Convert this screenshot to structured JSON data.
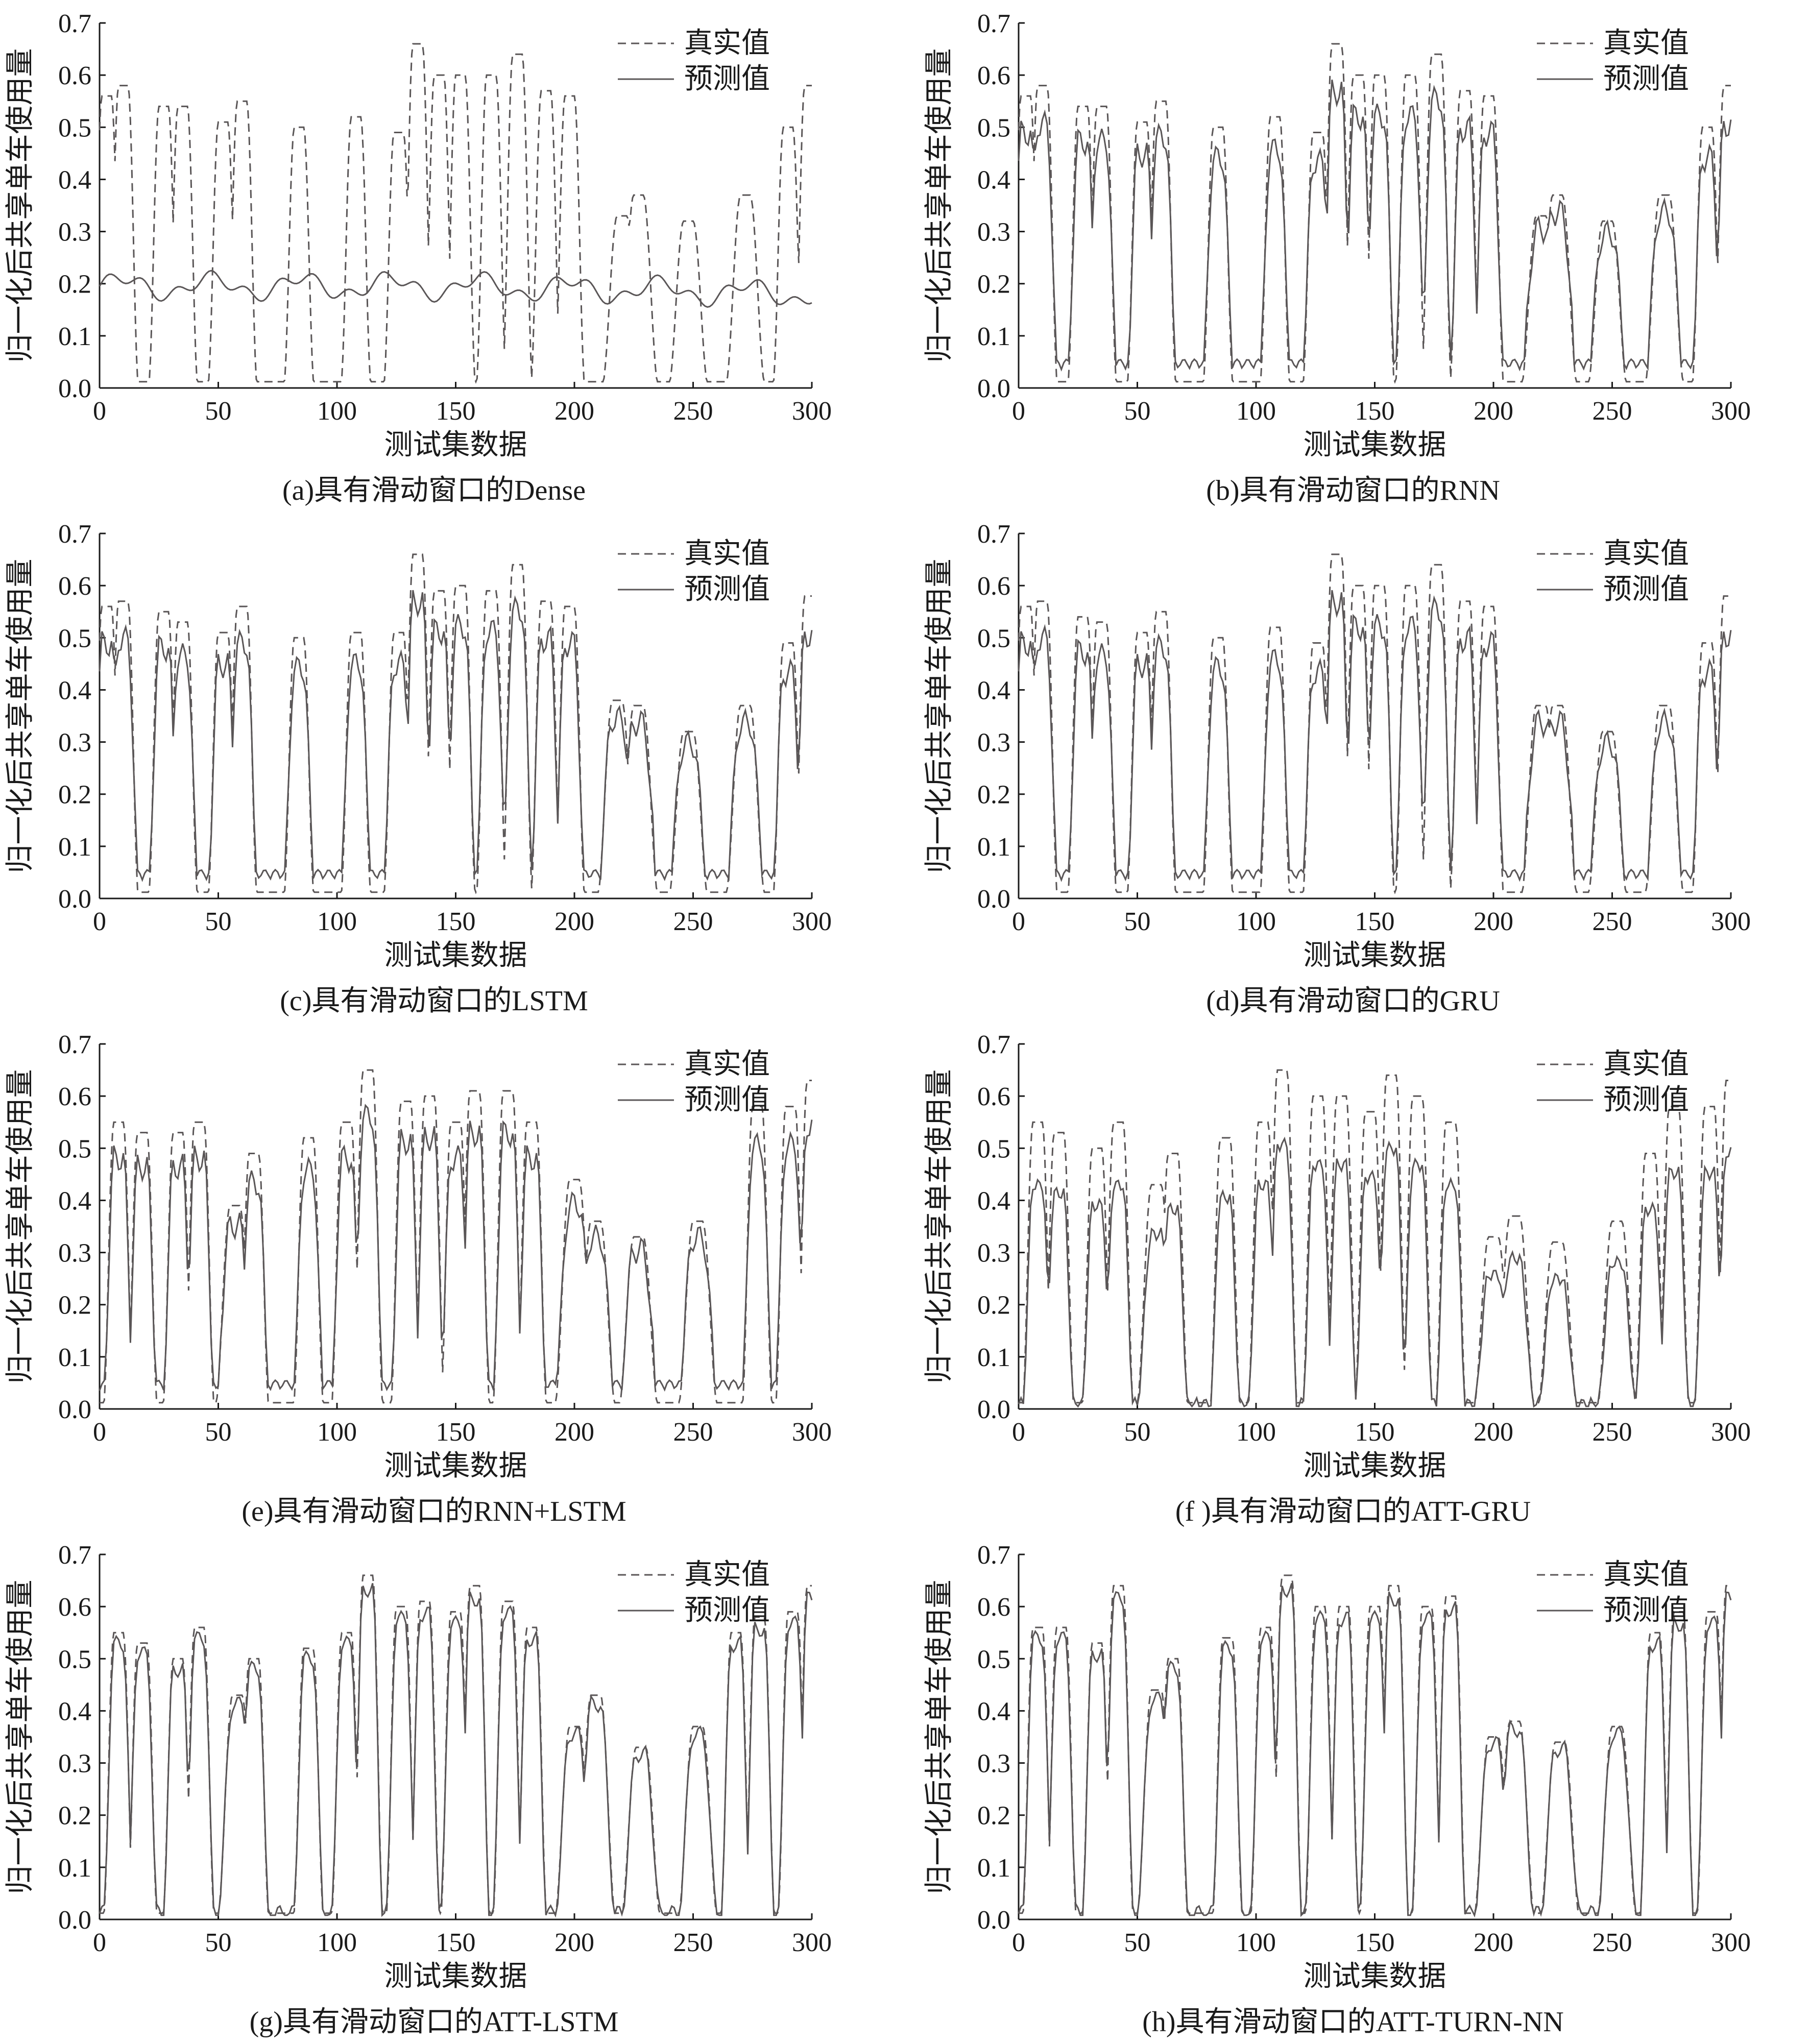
{
  "legend": {
    "actual": "真实值",
    "predicted": "预测值"
  },
  "colors": {
    "line": "#5a5657",
    "axis": "#1a1a1a",
    "background": "#ffffff"
  },
  "chart_data": [
    {
      "type": "line",
      "caption": "(a)具有滑动窗口的Dense",
      "xlabel": "测试集数据",
      "ylabel": "归一化后共享单车使用量",
      "xlim": [
        0,
        300
      ],
      "ylim": [
        0,
        0.7
      ],
      "xticks": [
        0,
        50,
        100,
        150,
        200,
        250,
        300
      ],
      "yticks": [
        0.0,
        0.1,
        0.2,
        0.3,
        0.4,
        0.5,
        0.6,
        0.7
      ],
      "legend_position": "top-right",
      "pattern": "a",
      "peaks": [
        [
          3,
          0.56
        ],
        [
          10,
          0.58
        ],
        [
          27,
          0.54
        ],
        [
          35,
          0.54
        ],
        [
          52,
          0.51
        ],
        [
          60,
          0.55
        ],
        [
          84,
          0.5
        ],
        [
          108,
          0.52
        ],
        [
          126,
          0.49
        ],
        [
          134,
          0.66
        ],
        [
          143,
          0.6
        ],
        [
          152,
          0.6
        ],
        [
          165,
          0.6
        ],
        [
          176,
          0.64
        ],
        [
          188,
          0.57
        ],
        [
          198,
          0.56
        ],
        [
          220,
          0.33
        ],
        [
          227,
          0.37
        ],
        [
          248,
          0.32
        ],
        [
          272,
          0.37
        ],
        [
          290,
          0.5
        ],
        [
          299,
          0.58
        ]
      ],
      "series": [
        {
          "name": "真实值",
          "style": "dashed"
        },
        {
          "name": "预测值",
          "style": "solid"
        }
      ]
    },
    {
      "type": "line",
      "caption": "(b)具有滑动窗口的RNN",
      "xlabel": "测试集数据",
      "ylabel": "归一化后共享单车使用量",
      "xlim": [
        0,
        300
      ],
      "ylim": [
        0,
        0.7
      ],
      "xticks": [
        0,
        50,
        100,
        150,
        200,
        250,
        300
      ],
      "yticks": [
        0.0,
        0.1,
        0.2,
        0.3,
        0.4,
        0.5,
        0.6,
        0.7
      ],
      "legend_position": "top-right",
      "pattern": "b",
      "peaks": [
        [
          3,
          0.56
        ],
        [
          10,
          0.58
        ],
        [
          27,
          0.54
        ],
        [
          35,
          0.54
        ],
        [
          52,
          0.51
        ],
        [
          60,
          0.55
        ],
        [
          84,
          0.5
        ],
        [
          108,
          0.52
        ],
        [
          126,
          0.49
        ],
        [
          134,
          0.66
        ],
        [
          143,
          0.6
        ],
        [
          152,
          0.6
        ],
        [
          165,
          0.6
        ],
        [
          176,
          0.64
        ],
        [
          188,
          0.57
        ],
        [
          198,
          0.56
        ],
        [
          220,
          0.33
        ],
        [
          227,
          0.37
        ],
        [
          248,
          0.32
        ],
        [
          272,
          0.37
        ],
        [
          290,
          0.5
        ],
        [
          299,
          0.58
        ]
      ],
      "series": [
        {
          "name": "真实值",
          "style": "dashed"
        },
        {
          "name": "预测值",
          "style": "solid"
        }
      ]
    },
    {
      "type": "line",
      "caption": "(c)具有滑动窗口的LSTM",
      "xlabel": "测试集数据",
      "ylabel": "归一化后共享单车使用量",
      "xlim": [
        0,
        300
      ],
      "ylim": [
        0,
        0.7
      ],
      "xticks": [
        0,
        50,
        100,
        150,
        200,
        250,
        300
      ],
      "yticks": [
        0.0,
        0.1,
        0.2,
        0.3,
        0.4,
        0.5,
        0.6,
        0.7
      ],
      "legend_position": "top-right",
      "pattern": "b",
      "peaks": [
        [
          3,
          0.56
        ],
        [
          10,
          0.57
        ],
        [
          27,
          0.55
        ],
        [
          35,
          0.53
        ],
        [
          52,
          0.51
        ],
        [
          60,
          0.56
        ],
        [
          84,
          0.5
        ],
        [
          108,
          0.51
        ],
        [
          126,
          0.51
        ],
        [
          134,
          0.66
        ],
        [
          143,
          0.59
        ],
        [
          152,
          0.6
        ],
        [
          165,
          0.59
        ],
        [
          176,
          0.64
        ],
        [
          188,
          0.57
        ],
        [
          198,
          0.56
        ],
        [
          218,
          0.38
        ],
        [
          227,
          0.37
        ],
        [
          248,
          0.32
        ],
        [
          272,
          0.37
        ],
        [
          290,
          0.49
        ],
        [
          299,
          0.58
        ]
      ],
      "series": [
        {
          "name": "真实值",
          "style": "dashed"
        },
        {
          "name": "预测值",
          "style": "solid"
        }
      ]
    },
    {
      "type": "line",
      "caption": "(d)具有滑动窗口的GRU",
      "xlabel": "测试集数据",
      "ylabel": "归一化后共享单车使用量",
      "xlim": [
        0,
        300
      ],
      "ylim": [
        0,
        0.7
      ],
      "xticks": [
        0,
        50,
        100,
        150,
        200,
        250,
        300
      ],
      "yticks": [
        0.0,
        0.1,
        0.2,
        0.3,
        0.4,
        0.5,
        0.6,
        0.7
      ],
      "legend_position": "top-right",
      "pattern": "b",
      "peaks": [
        [
          3,
          0.56
        ],
        [
          10,
          0.57
        ],
        [
          27,
          0.54
        ],
        [
          35,
          0.53
        ],
        [
          52,
          0.51
        ],
        [
          60,
          0.55
        ],
        [
          84,
          0.5
        ],
        [
          108,
          0.52
        ],
        [
          126,
          0.49
        ],
        [
          134,
          0.66
        ],
        [
          143,
          0.6
        ],
        [
          152,
          0.6
        ],
        [
          165,
          0.6
        ],
        [
          176,
          0.64
        ],
        [
          188,
          0.57
        ],
        [
          198,
          0.56
        ],
        [
          220,
          0.37
        ],
        [
          227,
          0.37
        ],
        [
          248,
          0.32
        ],
        [
          272,
          0.37
        ],
        [
          290,
          0.49
        ],
        [
          299,
          0.58
        ]
      ],
      "series": [
        {
          "name": "真实值",
          "style": "dashed"
        },
        {
          "name": "预测值",
          "style": "solid"
        }
      ]
    },
    {
      "type": "line",
      "caption": "(e)具有滑动窗口的RNN+LSTM",
      "xlabel": "测试集数据",
      "ylabel": "归一化后共享单车使用量",
      "xlim": [
        0,
        300
      ],
      "ylim": [
        0,
        0.7
      ],
      "xticks": [
        0,
        50,
        100,
        150,
        200,
        250,
        300
      ],
      "yticks": [
        0.0,
        0.1,
        0.2,
        0.3,
        0.4,
        0.5,
        0.6,
        0.7
      ],
      "legend_position": "top-right",
      "pattern": "b",
      "peaks": [
        [
          8,
          0.55
        ],
        [
          18,
          0.53
        ],
        [
          33,
          0.53
        ],
        [
          42,
          0.55
        ],
        [
          57,
          0.39
        ],
        [
          65,
          0.49
        ],
        [
          88,
          0.52
        ],
        [
          104,
          0.55
        ],
        [
          113,
          0.65
        ],
        [
          129,
          0.59
        ],
        [
          139,
          0.6
        ],
        [
          150,
          0.55
        ],
        [
          158,
          0.61
        ],
        [
          172,
          0.61
        ],
        [
          182,
          0.55
        ],
        [
          200,
          0.44
        ],
        [
          209,
          0.36
        ],
        [
          227,
          0.33
        ],
        [
          252,
          0.36
        ],
        [
          277,
          0.58
        ],
        [
          291,
          0.58
        ],
        [
          300,
          0.63
        ]
      ],
      "series": [
        {
          "name": "真实值",
          "style": "dashed"
        },
        {
          "name": "预测值",
          "style": "solid"
        }
      ]
    },
    {
      "type": "line",
      "caption": "(f )具有滑动窗口的ATT-GRU",
      "xlabel": "测试集数据",
      "ylabel": "归一化后共享单车使用量",
      "xlim": [
        0,
        300
      ],
      "ylim": [
        0,
        0.7
      ],
      "xticks": [
        0,
        50,
        100,
        150,
        200,
        250,
        300
      ],
      "yticks": [
        0.0,
        0.1,
        0.2,
        0.3,
        0.4,
        0.5,
        0.6,
        0.7
      ],
      "legend_position": "top-right",
      "pattern": "f",
      "peaks": [
        [
          8,
          0.55
        ],
        [
          17,
          0.53
        ],
        [
          33,
          0.5
        ],
        [
          42,
          0.55
        ],
        [
          58,
          0.43
        ],
        [
          65,
          0.49
        ],
        [
          87,
          0.52
        ],
        [
          103,
          0.55
        ],
        [
          111,
          0.65
        ],
        [
          126,
          0.6
        ],
        [
          136,
          0.6
        ],
        [
          148,
          0.57
        ],
        [
          157,
          0.64
        ],
        [
          168,
          0.6
        ],
        [
          182,
          0.55
        ],
        [
          200,
          0.33
        ],
        [
          209,
          0.37
        ],
        [
          227,
          0.32
        ],
        [
          252,
          0.36
        ],
        [
          266,
          0.49
        ],
        [
          276,
          0.58
        ],
        [
          291,
          0.58
        ],
        [
          300,
          0.63
        ]
      ],
      "series": [
        {
          "name": "真实值",
          "style": "dashed"
        },
        {
          "name": "预测值",
          "style": "solid"
        }
      ]
    },
    {
      "type": "line",
      "caption": "(g)具有滑动窗口的ATT-LSTM",
      "xlabel": "测试集数据",
      "ylabel": "归一化后共享单车使用量",
      "xlim": [
        0,
        300
      ],
      "ylim": [
        0,
        0.7
      ],
      "xticks": [
        0,
        50,
        100,
        150,
        200,
        250,
        300
      ],
      "yticks": [
        0.0,
        0.1,
        0.2,
        0.3,
        0.4,
        0.5,
        0.6,
        0.7
      ],
      "legend_position": "top-right",
      "pattern": "h",
      "peaks": [
        [
          8,
          0.55
        ],
        [
          18,
          0.53
        ],
        [
          33,
          0.5
        ],
        [
          42,
          0.56
        ],
        [
          58,
          0.43
        ],
        [
          65,
          0.5
        ],
        [
          88,
          0.52
        ],
        [
          104,
          0.55
        ],
        [
          113,
          0.66
        ],
        [
          127,
          0.6
        ],
        [
          137,
          0.61
        ],
        [
          150,
          0.59
        ],
        [
          158,
          0.64
        ],
        [
          172,
          0.61
        ],
        [
          182,
          0.56
        ],
        [
          200,
          0.37
        ],
        [
          209,
          0.43
        ],
        [
          228,
          0.33
        ],
        [
          252,
          0.37
        ],
        [
          268,
          0.55
        ],
        [
          278,
          0.58
        ],
        [
          292,
          0.59
        ],
        [
          300,
          0.64
        ]
      ],
      "series": [
        {
          "name": "真实值",
          "style": "dashed"
        },
        {
          "name": "预测值",
          "style": "solid"
        }
      ]
    },
    {
      "type": "line",
      "caption": "(h)具有滑动窗口的ATT-TURN-NN",
      "xlabel": "测试集数据",
      "ylabel": "归一化后共享单车使用量",
      "xlim": [
        0,
        300
      ],
      "ylim": [
        0,
        0.7
      ],
      "xticks": [
        0,
        50,
        100,
        150,
        200,
        250,
        300
      ],
      "yticks": [
        0.0,
        0.1,
        0.2,
        0.3,
        0.4,
        0.5,
        0.6,
        0.7
      ],
      "legend_position": "top-right",
      "pattern": "h",
      "peaks": [
        [
          8,
          0.56
        ],
        [
          18,
          0.56
        ],
        [
          33,
          0.53
        ],
        [
          42,
          0.64
        ],
        [
          58,
          0.44
        ],
        [
          65,
          0.5
        ],
        [
          88,
          0.54
        ],
        [
          104,
          0.56
        ],
        [
          113,
          0.66
        ],
        [
          127,
          0.6
        ],
        [
          137,
          0.6
        ],
        [
          150,
          0.6
        ],
        [
          158,
          0.64
        ],
        [
          172,
          0.6
        ],
        [
          182,
          0.62
        ],
        [
          200,
          0.35
        ],
        [
          209,
          0.38
        ],
        [
          228,
          0.34
        ],
        [
          252,
          0.37
        ],
        [
          268,
          0.55
        ],
        [
          278,
          0.59
        ],
        [
          292,
          0.59
        ],
        [
          300,
          0.64
        ]
      ],
      "series": [
        {
          "name": "真实值",
          "style": "dashed"
        },
        {
          "name": "预测值",
          "style": "solid"
        }
      ]
    }
  ]
}
